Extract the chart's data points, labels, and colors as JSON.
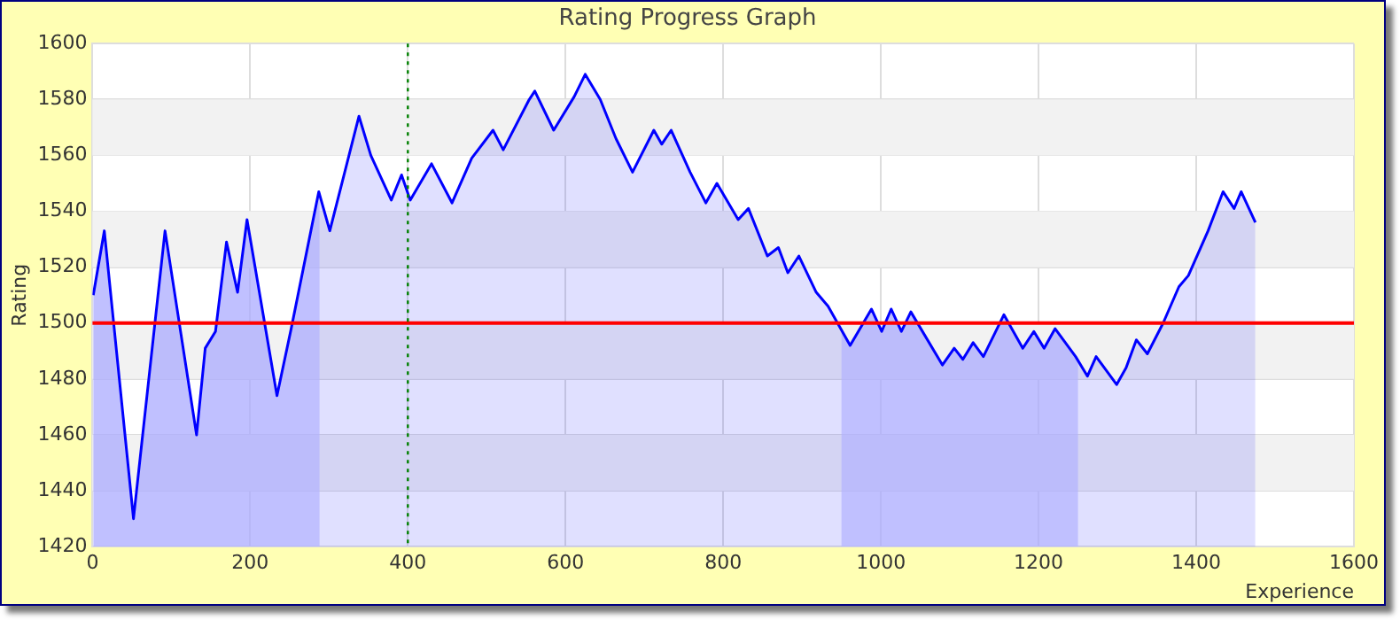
{
  "chart_data": {
    "type": "area",
    "title": "Rating Progress Graph",
    "xlabel": "Experience",
    "ylabel": "Rating",
    "x": [
      1,
      15,
      52,
      92,
      132,
      143,
      156,
      170,
      184,
      196,
      234,
      252,
      287,
      301,
      338,
      353,
      379,
      392,
      403,
      430,
      456,
      481,
      508,
      521,
      554,
      561,
      585,
      611,
      625,
      644,
      664,
      685,
      712,
      722,
      734,
      758,
      778,
      792,
      819,
      832,
      856,
      870,
      882,
      896,
      918,
      933,
      961,
      988,
      1001,
      1013,
      1026,
      1038,
      1078,
      1093,
      1104,
      1117,
      1130,
      1156,
      1180,
      1194,
      1207,
      1221,
      1247,
      1262,
      1273,
      1299,
      1311,
      1324,
      1338,
      1358,
      1378,
      1390,
      1415,
      1434,
      1448,
      1457,
      1475
    ],
    "series": [
      {
        "color": "#0000ff",
        "values": [
          1510,
          1533,
          1430,
          1533,
          1460,
          1491,
          1497,
          1529,
          1511,
          1537,
          1474,
          1498,
          1547,
          1533,
          1574,
          1560,
          1544,
          1553,
          1544,
          1557,
          1543,
          1559,
          1569,
          1562,
          1580,
          1583,
          1569,
          1581,
          1589,
          1580,
          1566,
          1554,
          1569,
          1564,
          1569,
          1554,
          1543,
          1550,
          1537,
          1541,
          1524,
          1527,
          1518,
          1524,
          1511,
          1506,
          1492,
          1505,
          1497,
          1505,
          1497,
          1504,
          1485,
          1491,
          1487,
          1493,
          1488,
          1503,
          1491,
          1497,
          1491,
          1498,
          1488,
          1481,
          1488,
          1478,
          1484,
          1494,
          1489,
          1500,
          1513,
          1517,
          1533,
          1547,
          1541,
          1547,
          1536
        ]
      }
    ],
    "xlim": [
      0,
      1600
    ],
    "xticks": [
      0,
      200,
      400,
      600,
      800,
      1000,
      1200,
      1400,
      1600
    ],
    "ylim": [
      1420,
      1600
    ],
    "yticks": [
      1420,
      1440,
      1460,
      1480,
      1500,
      1520,
      1540,
      1560,
      1580,
      1600
    ],
    "ref_lines": [
      {
        "axis": "y",
        "value": 1500,
        "color": "#ff0000",
        "line_style": "solid"
      },
      {
        "axis": "x",
        "value": 400,
        "color": "#008000",
        "line_style": "dotted"
      }
    ],
    "bands": [
      {
        "axis": "x",
        "from": 0,
        "to": 288,
        "color": "#ccccff"
      },
      {
        "axis": "x",
        "from": 950,
        "to": 1250,
        "color": "#ccccff"
      }
    ],
    "grid": true,
    "marker": "none",
    "line_style": "solid"
  }
}
